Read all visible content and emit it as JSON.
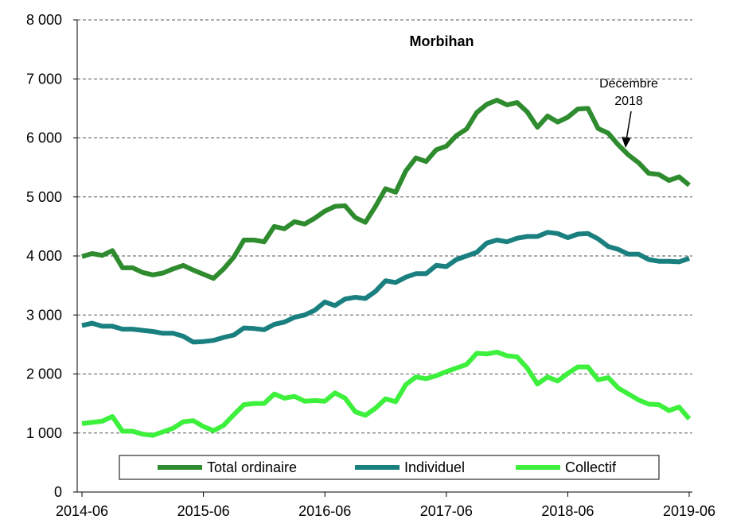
{
  "chart_data": {
    "type": "line",
    "title": "Morbihan",
    "annotation": [
      "Décembre",
      "2018"
    ],
    "categories": [
      "2014-06",
      null,
      null,
      null,
      null,
      null,
      null,
      null,
      null,
      null,
      null,
      null,
      "2015-06",
      null,
      null,
      null,
      null,
      null,
      null,
      null,
      null,
      null,
      null,
      null,
      "2016-06",
      null,
      null,
      null,
      null,
      null,
      null,
      null,
      null,
      null,
      null,
      null,
      "2017-06",
      null,
      null,
      null,
      null,
      null,
      null,
      null,
      null,
      null,
      null,
      null,
      "2018-06",
      null,
      null,
      null,
      null,
      null,
      null,
      null,
      null,
      null,
      null,
      null,
      "2019-06"
    ],
    "series": [
      {
        "name": "Total ordinaire",
        "color": "#2e8b2e",
        "values": [
          3990,
          4040,
          4010,
          4090,
          3800,
          3800,
          3720,
          3680,
          3710,
          3780,
          3840,
          3760,
          3690,
          3620,
          3780,
          3980,
          4270,
          4270,
          4240,
          4500,
          4460,
          4580,
          4540,
          4640,
          4760,
          4840,
          4850,
          4650,
          4570,
          4840,
          5140,
          5080,
          5440,
          5660,
          5600,
          5800,
          5860,
          6040,
          6150,
          6430,
          6570,
          6640,
          6560,
          6600,
          6440,
          6180,
          6370,
          6270,
          6350,
          6490,
          6500,
          6160,
          6080,
          5880,
          5710,
          5580,
          5400,
          5380,
          5280,
          5340,
          5200
        ]
      },
      {
        "name": "Individuel",
        "color": "#1a7f7f",
        "values": [
          2820,
          2860,
          2810,
          2810,
          2760,
          2760,
          2740,
          2720,
          2690,
          2690,
          2640,
          2540,
          2550,
          2570,
          2620,
          2660,
          2780,
          2770,
          2750,
          2840,
          2880,
          2960,
          3000,
          3080,
          3220,
          3160,
          3270,
          3300,
          3280,
          3400,
          3580,
          3550,
          3640,
          3700,
          3700,
          3840,
          3820,
          3940,
          4000,
          4060,
          4220,
          4270,
          4240,
          4300,
          4330,
          4330,
          4400,
          4380,
          4310,
          4370,
          4380,
          4290,
          4160,
          4110,
          4030,
          4030,
          3940,
          3910,
          3910,
          3900,
          3960
        ]
      },
      {
        "name": "Collectif",
        "color": "#3cf03c",
        "values": [
          1160,
          1180,
          1200,
          1280,
          1030,
          1030,
          980,
          960,
          1020,
          1080,
          1190,
          1210,
          1110,
          1040,
          1130,
          1310,
          1480,
          1500,
          1500,
          1660,
          1590,
          1620,
          1540,
          1550,
          1540,
          1680,
          1590,
          1360,
          1300,
          1420,
          1580,
          1530,
          1820,
          1950,
          1920,
          1970,
          2040,
          2100,
          2160,
          2350,
          2340,
          2370,
          2310,
          2290,
          2100,
          1830,
          1950,
          1880,
          2010,
          2120,
          2120,
          1900,
          1940,
          1760,
          1660,
          1560,
          1490,
          1480,
          1380,
          1440,
          1240
        ]
      }
    ],
    "ylim": [
      0,
      8000
    ],
    "yticks": [
      0,
      {
        "value": 1000,
        "label": "1 000"
      },
      {
        "value": 2000,
        "label": "2 000"
      },
      {
        "value": 3000,
        "label": "3 000"
      },
      {
        "value": 4000,
        "label": "4 000"
      },
      {
        "value": 5000,
        "label": "5 000"
      },
      {
        "value": 6000,
        "label": "6 000"
      },
      {
        "value": 7000,
        "label": "7 000"
      },
      {
        "value": 8000,
        "label": "8 000"
      }
    ],
    "grid": true
  }
}
